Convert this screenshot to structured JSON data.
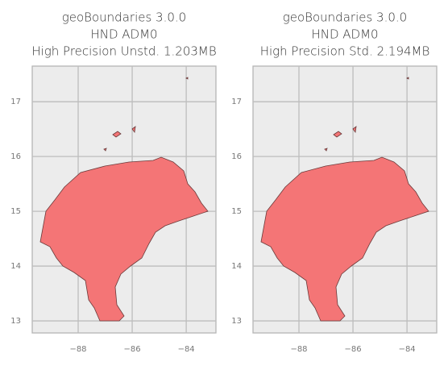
{
  "chart_data": [
    {
      "type": "map",
      "title": [
        "geoBoundaries 3.0.0",
        "HND ADM0",
        "High Precision Unstd. 1.203MB"
      ],
      "xlim": [
        -89.7,
        -82.9
      ],
      "ylim": [
        12.78,
        17.65
      ],
      "xticks": [
        {
          "value": -88,
          "label": "−88"
        },
        {
          "value": -86,
          "label": "−86"
        },
        {
          "value": -84,
          "label": "−84"
        }
      ],
      "yticks": [
        13,
        14,
        15,
        16,
        17
      ],
      "grid": true,
      "color": "#f47576"
    },
    {
      "type": "map",
      "title": [
        "geoBoundaries 3.0.0",
        "HND ADM0",
        "High Precision Std. 2.194MB"
      ],
      "xlim": [
        -89.7,
        -82.9
      ],
      "ylim": [
        12.78,
        17.65
      ],
      "xticks": [
        {
          "value": -88,
          "label": "−88"
        },
        {
          "value": -86,
          "label": "−86"
        },
        {
          "value": -84,
          "label": "−84"
        }
      ],
      "yticks": [
        13,
        14,
        15,
        16,
        17
      ],
      "grid": true,
      "color": "#f47576"
    }
  ]
}
